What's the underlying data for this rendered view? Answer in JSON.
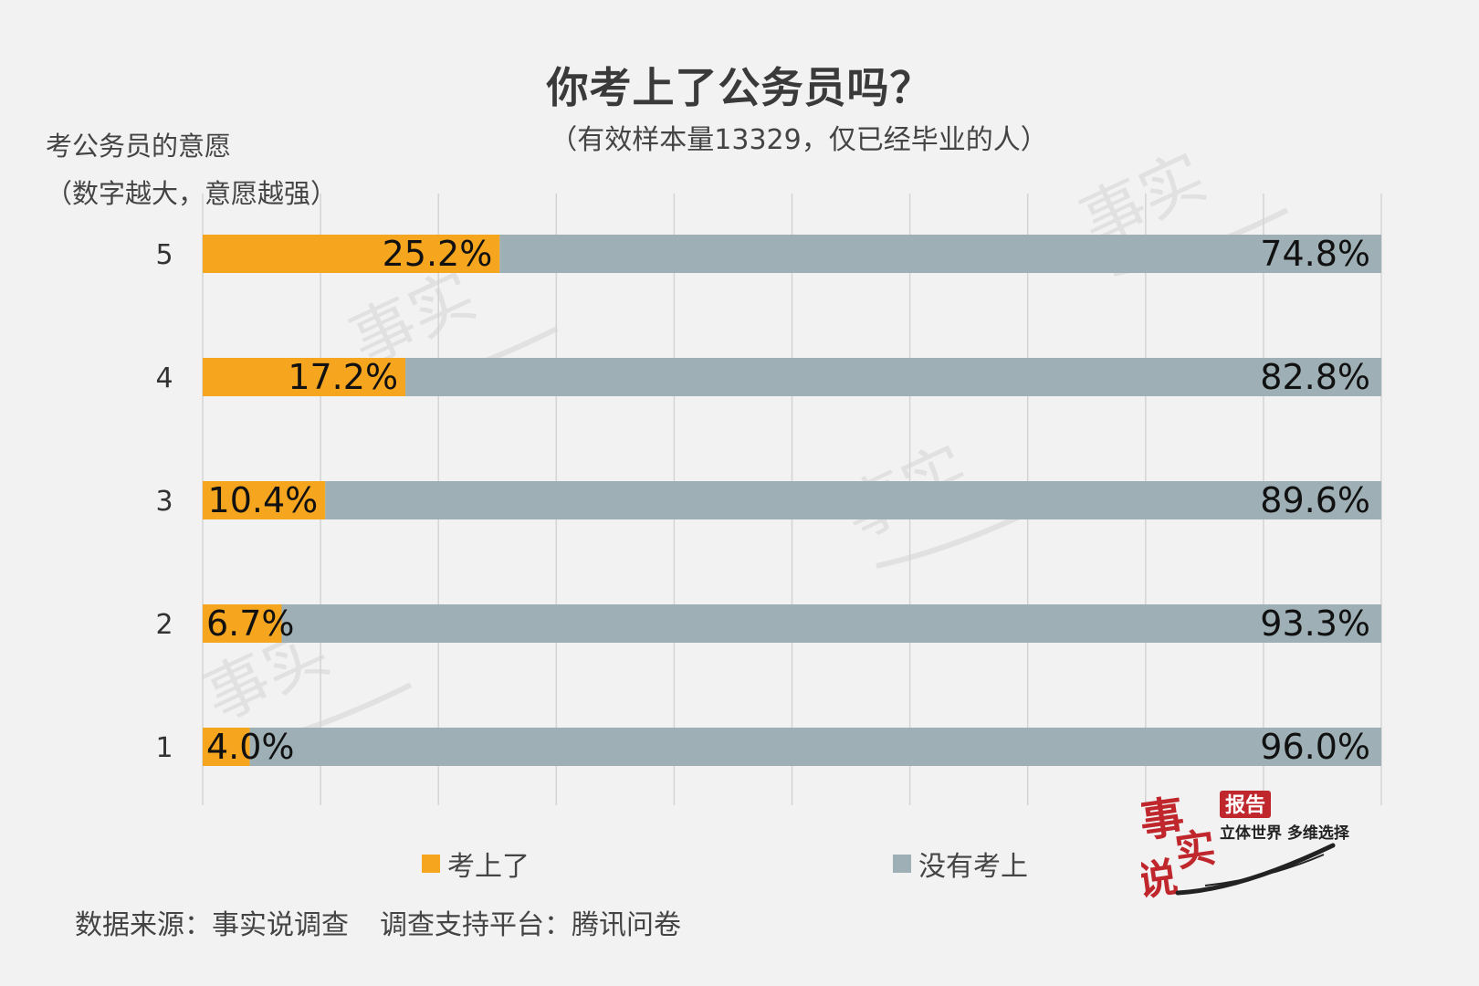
{
  "title": "你考上了公务员吗？",
  "subtitle": "（有效样本量13329，仅已经毕业的人）",
  "ylabel": {
    "line1": "考公务员的意愿",
    "line2": "（数字越大，意愿越强）"
  },
  "source": {
    "data_source": "数据来源：事实说调查",
    "platform": "调查支持平台：腾讯问卷"
  },
  "logo": {
    "brand": "事实说",
    "badge": "报告",
    "tagline": "立体世界 多维选择"
  },
  "colors": {
    "passed": "#f5a51e",
    "not_passed": "#9eb0b5",
    "background": "#f2f2f2",
    "grid": "#d4d4d4"
  },
  "chart_data": {
    "type": "bar",
    "orientation": "horizontal",
    "stacked": "100%",
    "title": "你考上了公务员吗？",
    "subtitle": "（有效样本量13329，仅已经毕业的人）",
    "ylabel": "考公务员的意愿（数字越大，意愿越强）",
    "categories": [
      "5",
      "4",
      "3",
      "2",
      "1"
    ],
    "series": [
      {
        "name": "考上了",
        "values": [
          25.2,
          17.2,
          10.4,
          6.7,
          4.0
        ],
        "labels": [
          "25.2%",
          "17.2%",
          "10.4%",
          "6.7%",
          "4.0%"
        ],
        "color": "#f5a51e"
      },
      {
        "name": "没有考上",
        "values": [
          74.8,
          82.8,
          89.6,
          93.3,
          96.0
        ],
        "labels": [
          "74.8%",
          "82.8%",
          "89.6%",
          "93.3%",
          "96.0%"
        ],
        "color": "#9eb0b5"
      }
    ],
    "xlim": [
      0,
      100
    ],
    "grid": true,
    "legend_position": "bottom"
  }
}
